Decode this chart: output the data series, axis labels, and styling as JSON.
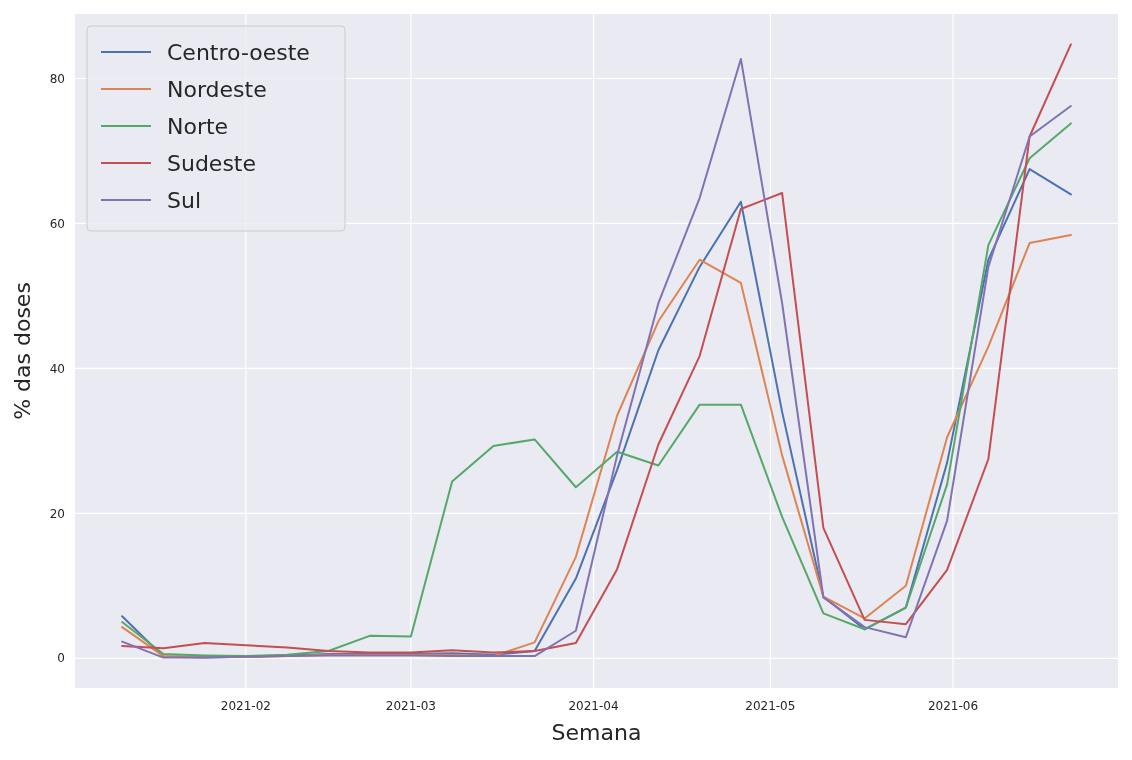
{
  "chart_data": {
    "type": "line",
    "xlabel": "Semana",
    "ylabel": "% das doses",
    "x": [
      "2021-01-11",
      "2021-01-18",
      "2021-01-25",
      "2021-02-01",
      "2021-02-08",
      "2021-02-15",
      "2021-02-22",
      "2021-03-01",
      "2021-03-08",
      "2021-03-15",
      "2021-03-22",
      "2021-03-29",
      "2021-04-05",
      "2021-04-12",
      "2021-04-19",
      "2021-04-26",
      "2021-05-03",
      "2021-05-10",
      "2021-05-17",
      "2021-05-24",
      "2021-05-31",
      "2021-06-07",
      "2021-06-14",
      "2021-06-21"
    ],
    "series": [
      {
        "name": "Centro-oeste",
        "color": "#4c72b0",
        "values": [
          5.8,
          0.2,
          0.1,
          0.2,
          0.4,
          0.6,
          0.6,
          0.6,
          0.7,
          0.5,
          1.0,
          11,
          26,
          42.5,
          54,
          63,
          34,
          8.5,
          4,
          7,
          27,
          55,
          67.5,
          64
        ]
      },
      {
        "name": "Nordeste",
        "color": "#dd8452",
        "values": [
          4.3,
          0.3,
          0.2,
          0.2,
          0.3,
          0.5,
          0.5,
          0.5,
          0.5,
          0.3,
          2.2,
          14,
          33.5,
          46.5,
          55,
          51.8,
          28,
          8.5,
          5.5,
          10,
          30.5,
          43,
          57.3,
          58.4
        ]
      },
      {
        "name": "Norte",
        "color": "#55a868",
        "values": [
          5,
          0.6,
          0.4,
          0.3,
          0.5,
          1.0,
          3.1,
          3.0,
          24.4,
          29.3,
          30.2,
          23.6,
          28.5,
          26.6,
          35,
          35,
          19.5,
          6.2,
          4,
          7,
          24,
          57,
          69,
          73.8
        ]
      },
      {
        "name": "Sudeste",
        "color": "#c44e52",
        "values": [
          1.7,
          1.4,
          2.1,
          1.8,
          1.5,
          1.0,
          0.8,
          0.8,
          1.1,
          0.8,
          1.0,
          2.1,
          12.3,
          29.5,
          41.7,
          62,
          64.2,
          18,
          5.3,
          4.7,
          12.2,
          27.5,
          72,
          84.7
        ]
      },
      {
        "name": "Sul",
        "color": "#8172b3",
        "values": [
          2.3,
          0.1,
          0.1,
          0.2,
          0.3,
          0.4,
          0.4,
          0.4,
          0.3,
          0.3,
          0.3,
          3.8,
          28,
          49,
          63.5,
          82.7,
          49,
          8.4,
          4.3,
          2.9,
          19,
          54,
          72,
          76.2
        ]
      }
    ],
    "xlim": [
      "2021-01-03",
      "2021-06-29"
    ],
    "xticks": [
      {
        "value": "2021-02-01",
        "label": "2021-02"
      },
      {
        "value": "2021-03-01",
        "label": "2021-03"
      },
      {
        "value": "2021-04-01",
        "label": "2021-04"
      },
      {
        "value": "2021-05-01",
        "label": "2021-05"
      },
      {
        "value": "2021-06-01",
        "label": "2021-06"
      }
    ],
    "ylim": [
      -4.1,
      88.9
    ],
    "yticks": [
      0,
      20,
      40,
      60,
      80
    ],
    "grid": true,
    "legend": "top left",
    "line_style": "solid",
    "marker": "none"
  }
}
